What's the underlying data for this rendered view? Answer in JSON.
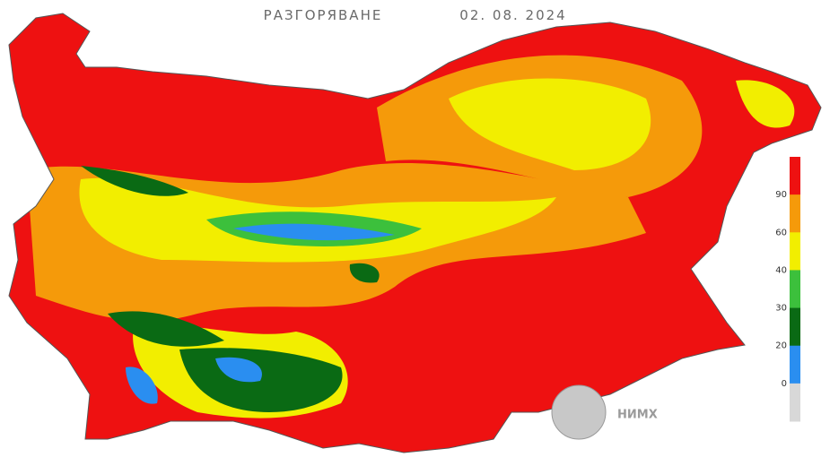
{
  "header": {
    "title": "РАЗГОРЯВАНЕ",
    "date": "02. 08. 2024"
  },
  "legend": {
    "colors": [
      "#ee1111",
      "#f59a0a",
      "#f2ee00",
      "#3cc03c",
      "#0a6a14",
      "#2a8ef0",
      "#d8d8d8"
    ],
    "labels": [
      90,
      60,
      40,
      30,
      20,
      0
    ]
  },
  "logo": {
    "text": "НИМХ"
  }
}
